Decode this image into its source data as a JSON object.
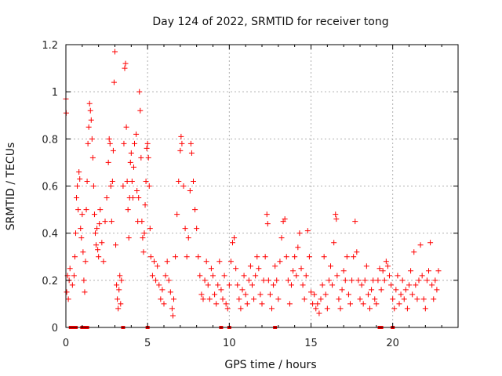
{
  "chart_data": {
    "type": "scatter",
    "title": "Day 124 of 2022, SRMTID for receiver tong",
    "xlabel": "GPS time / hours",
    "ylabel": "SRMTID / TECUs",
    "xlim": [
      0,
      24
    ],
    "ylim": [
      0,
      1.2
    ],
    "xticks": [
      0,
      5,
      10,
      15,
      20
    ],
    "xtick_labels": [
      "0",
      "5",
      "10",
      "15",
      "20"
    ],
    "yticks": [
      0,
      0.2,
      0.4,
      0.6,
      0.8,
      1.0,
      1.2
    ],
    "ytick_labels": [
      "0",
      "0.2",
      "0.4",
      "0.6",
      "0.8",
      "1",
      "1.2"
    ],
    "grid": true,
    "marker": "+",
    "series": [
      {
        "name": "SRMTID",
        "color": "#ff0000",
        "points": [
          [
            0.0,
            0.97
          ],
          [
            0.02,
            0.91
          ],
          [
            0.05,
            0.15
          ],
          [
            0.1,
            0.22
          ],
          [
            0.15,
            0.12
          ],
          [
            0.2,
            0.2
          ],
          [
            0.25,
            0.25
          ],
          [
            0.4,
            0.18
          ],
          [
            0.5,
            0.22
          ],
          [
            0.55,
            0.3
          ],
          [
            0.6,
            0.4
          ],
          [
            0.65,
            0.55
          ],
          [
            0.7,
            0.6
          ],
          [
            0.75,
            0.5
          ],
          [
            0.8,
            0.66
          ],
          [
            0.85,
            0.63
          ],
          [
            0.9,
            0.42
          ],
          [
            0.95,
            0.38
          ],
          [
            1.0,
            0.48
          ],
          [
            1.05,
            0.32
          ],
          [
            1.1,
            0.2
          ],
          [
            1.15,
            0.15
          ],
          [
            1.2,
            0.28
          ],
          [
            1.25,
            0.5
          ],
          [
            1.3,
            0.62
          ],
          [
            1.35,
            0.78
          ],
          [
            1.4,
            0.85
          ],
          [
            1.45,
            0.95
          ],
          [
            1.5,
            0.92
          ],
          [
            1.55,
            0.88
          ],
          [
            1.6,
            0.8
          ],
          [
            1.65,
            0.72
          ],
          [
            1.7,
            0.6
          ],
          [
            1.75,
            0.48
          ],
          [
            1.8,
            0.4
          ],
          [
            1.85,
            0.35
          ],
          [
            1.9,
            0.42
          ],
          [
            1.95,
            0.33
          ],
          [
            2.0,
            0.3
          ],
          [
            2.05,
            0.44
          ],
          [
            2.1,
            0.5
          ],
          [
            2.2,
            0.36
          ],
          [
            2.3,
            0.28
          ],
          [
            2.4,
            0.45
          ],
          [
            2.5,
            0.55
          ],
          [
            2.6,
            0.7
          ],
          [
            2.65,
            0.8
          ],
          [
            2.7,
            0.78
          ],
          [
            2.75,
            0.6
          ],
          [
            2.8,
            0.45
          ],
          [
            2.85,
            0.62
          ],
          [
            2.9,
            0.75
          ],
          [
            2.95,
            1.04
          ],
          [
            3.0,
            1.17
          ],
          [
            3.05,
            0.35
          ],
          [
            3.1,
            0.18
          ],
          [
            3.15,
            0.12
          ],
          [
            3.2,
            0.08
          ],
          [
            3.25,
            0.16
          ],
          [
            3.3,
            0.22
          ],
          [
            3.35,
            0.1
          ],
          [
            3.4,
            0.2
          ],
          [
            3.5,
            0.6
          ],
          [
            3.55,
            0.78
          ],
          [
            3.6,
            1.1
          ],
          [
            3.65,
            1.12
          ],
          [
            3.7,
            0.85
          ],
          [
            3.75,
            0.62
          ],
          [
            3.8,
            0.5
          ],
          [
            3.85,
            0.38
          ],
          [
            3.9,
            0.55
          ],
          [
            3.95,
            0.7
          ],
          [
            4.0,
            0.74
          ],
          [
            4.05,
            0.62
          ],
          [
            4.1,
            0.55
          ],
          [
            4.15,
            0.68
          ],
          [
            4.2,
            0.78
          ],
          [
            4.3,
            0.82
          ],
          [
            4.35,
            0.58
          ],
          [
            4.4,
            0.45
          ],
          [
            4.45,
            0.55
          ],
          [
            4.5,
            1.0
          ],
          [
            4.55,
            0.92
          ],
          [
            4.6,
            0.72
          ],
          [
            4.65,
            0.45
          ],
          [
            4.7,
            0.38
          ],
          [
            4.75,
            0.32
          ],
          [
            4.8,
            0.4
          ],
          [
            4.85,
            0.52
          ],
          [
            4.9,
            0.62
          ],
          [
            4.95,
            0.76
          ],
          [
            5.0,
            0.78
          ],
          [
            5.05,
            0.72
          ],
          [
            5.1,
            0.6
          ],
          [
            5.15,
            0.42
          ],
          [
            5.2,
            0.3
          ],
          [
            5.3,
            0.22
          ],
          [
            5.4,
            0.28
          ],
          [
            5.5,
            0.2
          ],
          [
            5.6,
            0.26
          ],
          [
            5.7,
            0.18
          ],
          [
            5.8,
            0.12
          ],
          [
            5.9,
            0.16
          ],
          [
            6.0,
            0.1
          ],
          [
            6.1,
            0.22
          ],
          [
            6.2,
            0.28
          ],
          [
            6.3,
            0.2
          ],
          [
            6.4,
            0.15
          ],
          [
            6.5,
            0.08
          ],
          [
            6.55,
            0.05
          ],
          [
            6.6,
            0.12
          ],
          [
            6.7,
            0.3
          ],
          [
            6.8,
            0.48
          ],
          [
            6.9,
            0.62
          ],
          [
            7.0,
            0.75
          ],
          [
            7.05,
            0.81
          ],
          [
            7.1,
            0.78
          ],
          [
            7.2,
            0.6
          ],
          [
            7.3,
            0.42
          ],
          [
            7.4,
            0.3
          ],
          [
            7.5,
            0.38
          ],
          [
            7.6,
            0.58
          ],
          [
            7.65,
            0.78
          ],
          [
            7.7,
            0.74
          ],
          [
            7.8,
            0.62
          ],
          [
            7.9,
            0.5
          ],
          [
            8.0,
            0.42
          ],
          [
            8.1,
            0.3
          ],
          [
            8.2,
            0.22
          ],
          [
            8.3,
            0.14
          ],
          [
            8.4,
            0.12
          ],
          [
            8.5,
            0.2
          ],
          [
            8.6,
            0.28
          ],
          [
            8.7,
            0.18
          ],
          [
            8.8,
            0.12
          ],
          [
            8.9,
            0.25
          ],
          [
            9.0,
            0.22
          ],
          [
            9.1,
            0.14
          ],
          [
            9.2,
            0.1
          ],
          [
            9.3,
            0.18
          ],
          [
            9.4,
            0.28
          ],
          [
            9.5,
            0.16
          ],
          [
            9.6,
            0.12
          ],
          [
            9.7,
            0.22
          ],
          [
            9.8,
            0.1
          ],
          [
            9.9,
            0.08
          ],
          [
            10.0,
            0.18
          ],
          [
            10.1,
            0.28
          ],
          [
            10.2,
            0.36
          ],
          [
            10.3,
            0.38
          ],
          [
            10.4,
            0.25
          ],
          [
            10.5,
            0.18
          ],
          [
            10.6,
            0.12
          ],
          [
            10.7,
            0.08
          ],
          [
            10.8,
            0.16
          ],
          [
            10.9,
            0.22
          ],
          [
            11.0,
            0.14
          ],
          [
            11.1,
            0.1
          ],
          [
            11.2,
            0.2
          ],
          [
            11.3,
            0.26
          ],
          [
            11.4,
            0.18
          ],
          [
            11.5,
            0.12
          ],
          [
            11.6,
            0.22
          ],
          [
            11.7,
            0.3
          ],
          [
            11.8,
            0.25
          ],
          [
            11.9,
            0.14
          ],
          [
            12.0,
            0.1
          ],
          [
            12.1,
            0.2
          ],
          [
            12.2,
            0.3
          ],
          [
            12.3,
            0.48
          ],
          [
            12.35,
            0.44
          ],
          [
            12.4,
            0.2
          ],
          [
            12.5,
            0.14
          ],
          [
            12.6,
            0.08
          ],
          [
            12.7,
            0.18
          ],
          [
            12.8,
            0.26
          ],
          [
            12.9,
            0.2
          ],
          [
            13.0,
            0.12
          ],
          [
            13.1,
            0.28
          ],
          [
            13.2,
            0.38
          ],
          [
            13.3,
            0.45
          ],
          [
            13.4,
            0.46
          ],
          [
            13.5,
            0.3
          ],
          [
            13.6,
            0.2
          ],
          [
            13.7,
            0.1
          ],
          [
            13.8,
            0.18
          ],
          [
            13.9,
            0.24
          ],
          [
            14.0,
            0.3
          ],
          [
            14.1,
            0.22
          ],
          [
            14.2,
            0.34
          ],
          [
            14.3,
            0.4
          ],
          [
            14.4,
            0.25
          ],
          [
            14.5,
            0.18
          ],
          [
            14.6,
            0.12
          ],
          [
            14.7,
            0.22
          ],
          [
            14.8,
            0.41
          ],
          [
            14.9,
            0.3
          ],
          [
            15.0,
            0.15
          ],
          [
            15.1,
            0.1
          ],
          [
            15.2,
            0.14
          ],
          [
            15.3,
            0.08
          ],
          [
            15.4,
            0.1
          ],
          [
            15.5,
            0.06
          ],
          [
            15.6,
            0.12
          ],
          [
            15.7,
            0.18
          ],
          [
            15.8,
            0.3
          ],
          [
            15.9,
            0.14
          ],
          [
            16.0,
            0.08
          ],
          [
            16.1,
            0.2
          ],
          [
            16.2,
            0.26
          ],
          [
            16.3,
            0.18
          ],
          [
            16.4,
            0.36
          ],
          [
            16.5,
            0.48
          ],
          [
            16.55,
            0.46
          ],
          [
            16.6,
            0.22
          ],
          [
            16.7,
            0.12
          ],
          [
            16.8,
            0.08
          ],
          [
            16.9,
            0.16
          ],
          [
            17.0,
            0.24
          ],
          [
            17.1,
            0.2
          ],
          [
            17.2,
            0.3
          ],
          [
            17.3,
            0.14
          ],
          [
            17.4,
            0.1
          ],
          [
            17.5,
            0.2
          ],
          [
            17.6,
            0.3
          ],
          [
            17.7,
            0.45
          ],
          [
            17.8,
            0.32
          ],
          [
            17.9,
            0.2
          ],
          [
            18.0,
            0.12
          ],
          [
            18.1,
            0.18
          ],
          [
            18.2,
            0.1
          ],
          [
            18.3,
            0.2
          ],
          [
            18.4,
            0.26
          ],
          [
            18.5,
            0.14
          ],
          [
            18.6,
            0.08
          ],
          [
            18.7,
            0.16
          ],
          [
            18.8,
            0.2
          ],
          [
            18.9,
            0.12
          ],
          [
            19.0,
            0.1
          ],
          [
            19.1,
            0.2
          ],
          [
            19.2,
            0.25
          ],
          [
            19.3,
            0.16
          ],
          [
            19.4,
            0.24
          ],
          [
            19.5,
            0.2
          ],
          [
            19.6,
            0.28
          ],
          [
            19.7,
            0.26
          ],
          [
            19.8,
            0.22
          ],
          [
            19.9,
            0.18
          ],
          [
            20.0,
            0.12
          ],
          [
            20.1,
            0.08
          ],
          [
            20.2,
            0.16
          ],
          [
            20.3,
            0.22
          ],
          [
            20.4,
            0.1
          ],
          [
            20.5,
            0.14
          ],
          [
            20.6,
            0.2
          ],
          [
            20.7,
            0.12
          ],
          [
            20.8,
            0.16
          ],
          [
            20.9,
            0.08
          ],
          [
            21.0,
            0.18
          ],
          [
            21.1,
            0.24
          ],
          [
            21.2,
            0.14
          ],
          [
            21.3,
            0.32
          ],
          [
            21.4,
            0.18
          ],
          [
            21.5,
            0.12
          ],
          [
            21.6,
            0.2
          ],
          [
            21.7,
            0.35
          ],
          [
            21.8,
            0.22
          ],
          [
            21.9,
            0.12
          ],
          [
            22.0,
            0.08
          ],
          [
            22.1,
            0.2
          ],
          [
            22.2,
            0.24
          ],
          [
            22.3,
            0.36
          ],
          [
            22.4,
            0.18
          ],
          [
            22.5,
            0.12
          ],
          [
            22.6,
            0.2
          ],
          [
            22.7,
            0.16
          ],
          [
            22.8,
            0.24
          ]
        ]
      }
    ],
    "gap_markers_x": [
      0.3,
      0.4,
      0.5,
      0.6,
      1.0,
      1.1,
      1.2,
      1.3,
      3.5,
      5.0,
      9.5,
      10.0,
      12.8,
      19.2,
      19.3,
      20.0
    ]
  }
}
